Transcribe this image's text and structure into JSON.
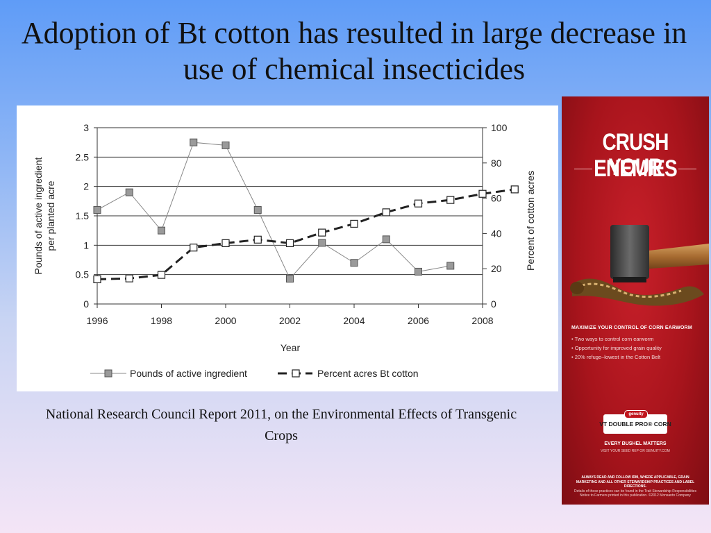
{
  "slide": {
    "title": "Adoption of Bt cotton has resulted in large decrease in use of chemical insecticides",
    "caption": "National Research Council Report 2011, on the Environmental Effects of Transgenic Crops"
  },
  "chart_data": {
    "type": "line",
    "title": "",
    "xlabel": "Year",
    "ylabel_left": "Pounds of active ingredient per planted acre",
    "ylabel_right": "Percent of cotton acres",
    "xlim": [
      1996,
      2008
    ],
    "ylim_left": [
      0,
      3
    ],
    "ylim_right": [
      0,
      100
    ],
    "x_ticks": [
      1996,
      1998,
      2000,
      2002,
      2004,
      2006,
      2008
    ],
    "y_ticks_left": [
      "0",
      "0.5",
      "1",
      "1.5",
      "2",
      "2.5",
      "3"
    ],
    "y_ticks_right": [
      "0",
      "20",
      "40",
      "60",
      "80",
      "100"
    ],
    "grid": "horizontal",
    "legend_position": "bottom",
    "series": [
      {
        "name": "Pounds of active ingredient",
        "axis": "left",
        "style": "solid",
        "marker": "filled-square",
        "color": "#888888",
        "x": [
          1996,
          1997,
          1998,
          1999,
          2000,
          2001,
          2002,
          2003,
          2004,
          2005,
          2006,
          2007
        ],
        "values": [
          1.6,
          1.9,
          1.25,
          2.75,
          2.7,
          1.6,
          0.43,
          1.04,
          0.7,
          1.1,
          0.55,
          0.65
        ]
      },
      {
        "name": "Percent acres Bt cotton",
        "axis": "right",
        "style": "dashed",
        "marker": "open-square",
        "color": "#222222",
        "x": [
          1996,
          1997,
          1998,
          1999,
          2000,
          2001,
          2002,
          2003,
          2004,
          2005,
          2006,
          2007,
          2008,
          2009
        ],
        "values": [
          14,
          14.5,
          16.5,
          32,
          34.5,
          36.5,
          34.5,
          40.5,
          45.5,
          52,
          57,
          59,
          62.5,
          65
        ]
      }
    ]
  },
  "ad": {
    "headline": "CRUSH YOUR",
    "subheadline": "ENEMIES",
    "section_title": "MAXIMIZE YOUR CONTROL OF CORN EARWORM",
    "bullets": [
      "Two ways to control corn earworm",
      "Opportunity for improved grain quality",
      "20% refuge–lowest in the Cotton Belt"
    ],
    "brand": "genuity",
    "product": "VT DOUBLE PRO® CORN",
    "tagline": "EVERY BUSHEL MATTERS",
    "url_line": "VISIT YOUR SEED REP OR GENUITY.COM",
    "fine_print_bold": "ALWAYS READ AND FOLLOW IRM, WHERE APPLICABLE, GRAIN MARKETING AND ALL OTHER STEWARDSHIP PRACTICES AND LABEL DIRECTIONS.",
    "fine_print": "Details of these practices can be found in the Trait Stewardship Responsibilities Notice to Farmers printed in this publication. ©2012 Monsanto Company",
    "colors": {
      "background": "#a8141c",
      "text": "#ffffff"
    }
  }
}
